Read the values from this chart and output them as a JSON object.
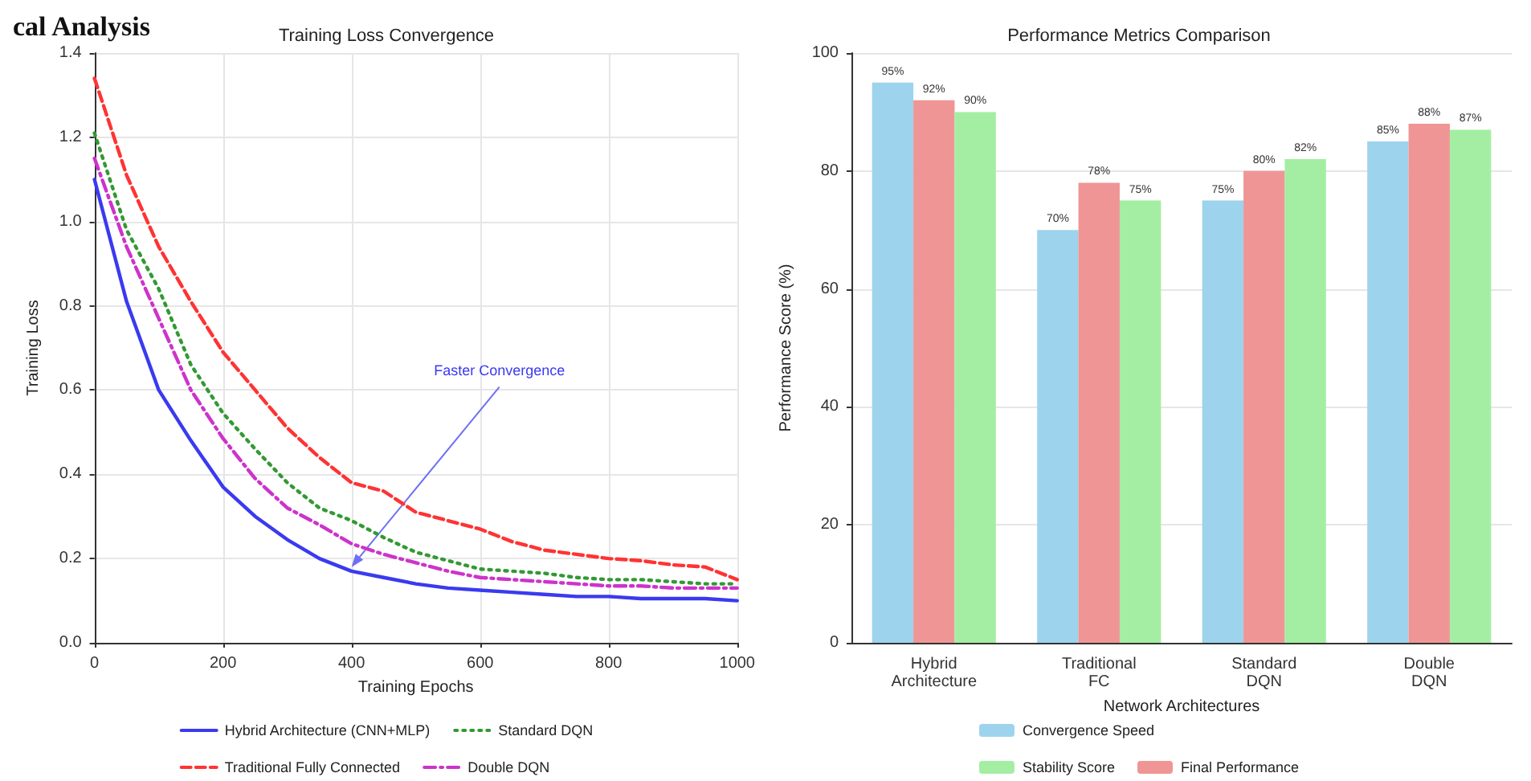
{
  "chart_data": [
    {
      "type": "line",
      "title": "Training Loss Convergence",
      "xlabel": "Training Epochs",
      "ylabel": "Training Loss",
      "xlim": [
        0,
        1000
      ],
      "xticks": [
        0,
        200,
        400,
        600,
        800,
        1000
      ],
      "ylim": [
        0,
        1.4
      ],
      "yticks": [
        {
          "value": 0,
          "label": "0.0"
        },
        0.2,
        0.4,
        0.6,
        0.8,
        {
          "value": 1,
          "label": "1.0"
        },
        1.2,
        1.4
      ],
      "grid": true,
      "legend": "bottom",
      "marker": "none",
      "x": [
        0,
        50,
        100,
        150,
        200,
        250,
        300,
        350,
        400,
        450,
        500,
        550,
        600,
        650,
        700,
        750,
        800,
        850,
        900,
        950,
        1000
      ],
      "annotations": [
        "cal Analysis",
        {
          "text": "Faster Convergence",
          "x": 400,
          "y": 0.18
        }
      ],
      "series": [
        {
          "name": "Hybrid Architecture (CNN+MLP)",
          "color": "#3a3af0",
          "line_style": "solid",
          "values": [
            1.1,
            0.81,
            0.6,
            0.48,
            0.37,
            0.3,
            0.245,
            0.2,
            0.17,
            0.155,
            0.14,
            0.13,
            0.125,
            0.12,
            0.115,
            0.11,
            0.11,
            0.105,
            0.105,
            0.105,
            0.1
          ]
        },
        {
          "name": "Traditional Fully Connected",
          "color": "#ff3333",
          "line_style": "dashed",
          "values": [
            1.34,
            1.11,
            0.94,
            0.81,
            0.69,
            0.6,
            0.51,
            0.44,
            0.38,
            0.36,
            0.31,
            0.29,
            0.27,
            0.24,
            0.22,
            0.21,
            0.2,
            0.195,
            0.185,
            0.18,
            0.15
          ]
        },
        {
          "name": "Standard DQN",
          "color": "#339933",
          "line_style": "dotted",
          "values": [
            1.21,
            0.98,
            0.84,
            0.66,
            0.545,
            0.46,
            0.38,
            0.32,
            0.29,
            0.25,
            0.215,
            0.195,
            0.175,
            0.17,
            0.165,
            0.155,
            0.15,
            0.15,
            0.145,
            0.14,
            0.14
          ]
        },
        {
          "name": "Double DQN",
          "color": "#cc33cc",
          "line_style": "dashdot",
          "values": [
            1.15,
            0.94,
            0.77,
            0.6,
            0.485,
            0.39,
            0.32,
            0.28,
            0.235,
            0.21,
            0.19,
            0.17,
            0.155,
            0.15,
            0.145,
            0.14,
            0.135,
            0.135,
            0.13,
            0.13,
            0.13
          ]
        }
      ]
    },
    {
      "type": "bar",
      "title": "Performance Metrics Comparison",
      "xlabel": "Network Architectures",
      "ylabel": "Performance Score (%)",
      "ylim": [
        0,
        100
      ],
      "yticks": [
        0,
        20,
        40,
        60,
        80,
        100
      ],
      "grid": "y",
      "legend": "bottom",
      "categories": [
        "Hybrid\nArchitecture",
        "Traditional\nFC",
        "Standard\nDQN",
        "Double\nDQN"
      ],
      "series": [
        {
          "name": "Convergence Speed",
          "color": "#9dd3ec",
          "values": [
            95,
            70,
            75,
            85
          ],
          "value_labels": [
            "95%",
            "70%",
            "75%",
            "85%"
          ]
        },
        {
          "name": "Final Performance",
          "color": "#f09595",
          "values": [
            92,
            78,
            80,
            88
          ],
          "value_labels": [
            "92%",
            "78%",
            "80%",
            "88%"
          ]
        },
        {
          "name": "Stability Score",
          "color": "#a3eea3",
          "values": [
            90,
            75,
            82,
            87
          ],
          "value_labels": [
            "90%",
            "75%",
            "82%",
            "87%"
          ]
        }
      ]
    }
  ]
}
